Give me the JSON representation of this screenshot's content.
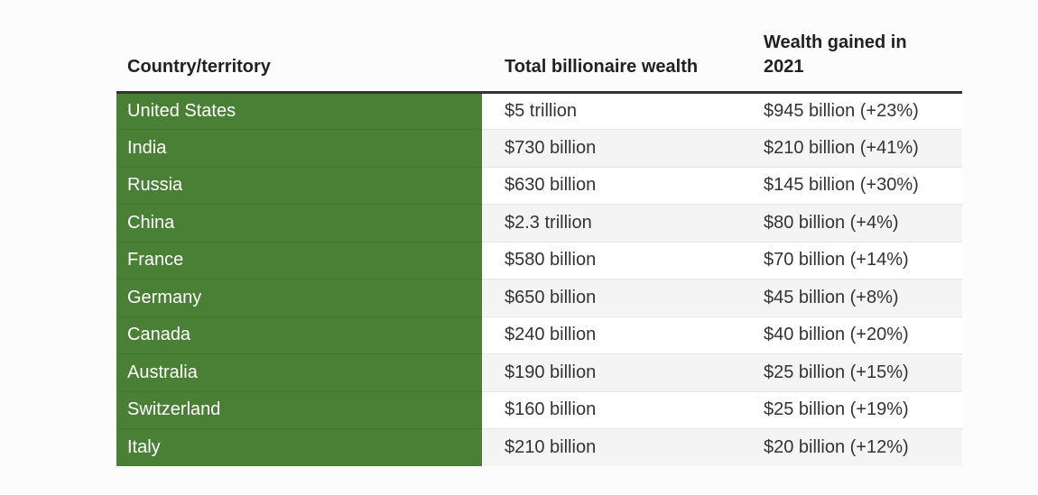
{
  "chart_data": {
    "type": "table",
    "columns": [
      "Country/territory",
      "Total billionaire wealth",
      "Wealth gained in 2021"
    ],
    "rows": [
      [
        "United States",
        "$5 trillion",
        "$945 billion (+23%)"
      ],
      [
        "India",
        "$730 billion",
        "$210 billion (+41%)"
      ],
      [
        "Russia",
        "$630 billion",
        "$145 billion (+30%)"
      ],
      [
        "China",
        "$2.3 trillion",
        "$80 billion (+4%)"
      ],
      [
        "France",
        "$580 billion",
        "$70 billion (+14%)"
      ],
      [
        "Germany",
        "$650 billion",
        "$45 billion (+8%)"
      ],
      [
        "Canada",
        "$240 billion",
        "$40 billion (+20%)"
      ],
      [
        "Australia",
        "$190 billion",
        "$25 billion (+15%)"
      ],
      [
        "Switzerland",
        "$160 billion",
        "$25 billion (+19%)"
      ],
      [
        "Italy",
        "$210 billion",
        "$20 billion (+12%)"
      ]
    ]
  },
  "colors": {
    "country_cell_bg": "#4a7f36",
    "header_rule": "#333333",
    "stripe": "#f4f4f4"
  }
}
